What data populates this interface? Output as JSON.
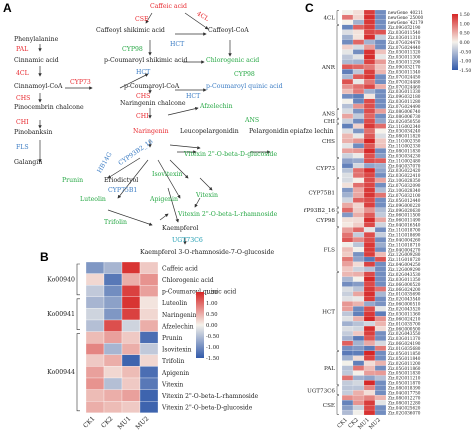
{
  "panels": {
    "a": "A",
    "b": "B",
    "c": "C"
  },
  "colors": {
    "red": "#e8282e",
    "blue": "#3b7cc4",
    "green": "#27a845",
    "teal": "#1a9bb0"
  },
  "pathway": {
    "compounds": [
      {
        "id": "caffeic",
        "text": "Caffeic acid",
        "color": "red"
      },
      {
        "id": "caffeoyl-shikimic",
        "text": "Caffeoyl shikimic acid",
        "color": "black"
      },
      {
        "id": "caffeoyl-coa",
        "text": "Caffeoyl-CoA",
        "color": "black"
      },
      {
        "id": "phenylalanine",
        "text": "Phenylalanine",
        "color": "black"
      },
      {
        "id": "pcoumaroyl-shikimic",
        "text": "p-Coumaroyl shikimic acid",
        "color": "black"
      },
      {
        "id": "chlorogenic",
        "text": "Chlorogenic acid",
        "color": "green"
      },
      {
        "id": "cinnamic",
        "text": "Cinnamic acid",
        "color": "black"
      },
      {
        "id": "cinnamoyl-coa",
        "text": "Cinnamoyl-CoA",
        "color": "black"
      },
      {
        "id": "pcoumaroyl-coa",
        "text": "p-Coumaroyl-CoA",
        "color": "black"
      },
      {
        "id": "pcoumaroyl-quinic",
        "text": "p-Coumaroyl quinic acid",
        "color": "blue"
      },
      {
        "id": "pinocembrin-chalcone",
        "text": "Pinocembrin chalcone",
        "color": "black"
      },
      {
        "id": "naringenin-chalcone",
        "text": "Naringenin chalcone",
        "color": "black"
      },
      {
        "id": "afzelechin",
        "text": "Afzelechin",
        "color": "green"
      },
      {
        "id": "pinobanksin",
        "text": "Pinobanksin",
        "color": "black"
      },
      {
        "id": "naringenin",
        "text": "Naringenin",
        "color": "red"
      },
      {
        "id": "leucopelargonidin",
        "text": "Leucopelargonidin",
        "color": "black"
      },
      {
        "id": "pelargonidin",
        "text": "Pelargonidin",
        "color": "black"
      },
      {
        "id": "epiafzelechin",
        "text": "epiafze lechin",
        "color": "black"
      },
      {
        "id": "galangin",
        "text": "Galangin",
        "color": "black"
      },
      {
        "id": "vitexin-glucoside",
        "text": "Vitexin 2\"-O-beta-D-glucoside",
        "color": "green"
      },
      {
        "id": "isovitexin",
        "text": "Isovitexin",
        "color": "green"
      },
      {
        "id": "prunin",
        "text": "Prunin",
        "color": "green"
      },
      {
        "id": "eriodictyol",
        "text": "Eriodictyol",
        "color": "black"
      },
      {
        "id": "vitexin",
        "text": "Vitexin",
        "color": "green"
      },
      {
        "id": "luteolin",
        "text": "Luteolin",
        "color": "green"
      },
      {
        "id": "apigenin",
        "text": "Apigenin",
        "color": "green"
      },
      {
        "id": "vitexin-rhamnoside",
        "text": "Vitexin 2\"-O-beta-L-rhamnoside",
        "color": "green"
      },
      {
        "id": "trifolin",
        "text": "Trifolin",
        "color": "green"
      },
      {
        "id": "kaempferol",
        "text": "Kaempferol",
        "color": "black"
      },
      {
        "id": "kaempferol-glucoside",
        "text": "Kaempferol 3-O-rhamnoside-7-O-glucoside",
        "color": "black"
      }
    ],
    "enzymes": [
      {
        "id": "cse",
        "text": "CSE",
        "color": "red"
      },
      {
        "id": "4cl-top",
        "text": "4CL",
        "color": "red"
      },
      {
        "id": "hct-top",
        "text": "HCT",
        "color": "blue"
      },
      {
        "id": "cyp98-top",
        "text": "CYP98",
        "color": "green"
      },
      {
        "id": "pal",
        "text": "PAL",
        "color": "red"
      },
      {
        "id": "4cl-left",
        "text": "4CL",
        "color": "red"
      },
      {
        "id": "cyp73",
        "text": "CYP73",
        "color": "red"
      },
      {
        "id": "hct-mid",
        "text": "HCT",
        "color": "blue"
      },
      {
        "id": "hct-low",
        "text": "HCT",
        "color": "blue"
      },
      {
        "id": "cyp98-low",
        "text": "CYP98",
        "color": "green"
      },
      {
        "id": "chs-left",
        "text": "CHS",
        "color": "red"
      },
      {
        "id": "chs-mid",
        "text": "CHS",
        "color": "red"
      },
      {
        "id": "chi-left",
        "text": "CHI",
        "color": "red"
      },
      {
        "id": "chi-mid",
        "text": "CHI",
        "color": "red"
      },
      {
        "id": "ans",
        "text": "ANS",
        "color": "green"
      },
      {
        "id": "fls",
        "text": "FLS",
        "color": "blue"
      },
      {
        "id": "cyp93b2",
        "text": "CYP93B2_16",
        "color": "blue"
      },
      {
        "id": "hb14g",
        "text": "HB14G",
        "color": "blue"
      },
      {
        "id": "cyp75b1",
        "text": "CYP75B1",
        "color": "blue"
      },
      {
        "id": "ugt73c6",
        "text": "UGT73C6",
        "color": "teal"
      }
    ]
  },
  "heatmap_b": {
    "columns": [
      "CK1",
      "CK2",
      "MU1",
      "MU2"
    ],
    "groups": [
      {
        "name": "Ko00940",
        "rows": [
          "Caffeic acid",
          "Chlorogenic acid",
          "p-Coumaroyl quinic acid"
        ]
      },
      {
        "name": "Ko00941",
        "rows": [
          "Luteolin",
          "Naringenin",
          "Afzelechin"
        ]
      },
      {
        "name": "Ko00944",
        "rows": [
          "Prunin",
          "Isovitexin",
          "Trifolin",
          "Apigenin",
          "Vitexin",
          "Vitexin 2\"-O-beta-L-rhamnoside",
          "Vitexin 2\"-O-beta-D-glucoside"
        ]
      }
    ],
    "values": [
      [
        -0.9,
        -0.6,
        1.4,
        0.3
      ],
      [
        0.2,
        -1.2,
        0.5,
        0.7
      ],
      [
        -0.4,
        -1.0,
        1.3,
        0.6
      ],
      [
        -0.6,
        -0.8,
        1.4,
        0.1
      ],
      [
        -0.3,
        -0.9,
        1.3,
        0.2
      ],
      [
        -0.5,
        1.2,
        -0.3,
        0.5
      ],
      [
        0.4,
        0.6,
        0.3,
        -1.3
      ],
      [
        0.8,
        -0.6,
        0.5,
        -0.4
      ],
      [
        0.3,
        0.5,
        -1.4,
        0.2
      ],
      [
        0.6,
        0.2,
        0.4,
        -1.3
      ],
      [
        0.7,
        -0.5,
        0.3,
        -1.2
      ],
      [
        0.4,
        0.5,
        0.6,
        -1.4
      ],
      [
        0.5,
        0.4,
        0.3,
        -1.4
      ]
    ],
    "legend_ticks": [
      "1.50",
      "1.00",
      "0.50",
      "0.00",
      "-0.50",
      "-1.00",
      "-1.50"
    ]
  },
  "heatmap_c": {
    "columns": [
      "CK1",
      "CK2",
      "MU1",
      "MU2"
    ],
    "groups": [
      {
        "name": "4CL",
        "count": 3
      },
      {
        "name": "ANR",
        "count": 17
      },
      {
        "name": "ANS",
        "count": 2
      },
      {
        "name": "CHI",
        "count": 1
      },
      {
        "name": "CHS",
        "count": 7
      },
      {
        "name": "CYP73",
        "count": 4
      },
      {
        "name": "CYP75B1",
        "count": 6
      },
      {
        "name": "CYP93B2_16",
        "count": 1
      },
      {
        "name": "CYP98",
        "count": 3
      },
      {
        "name": "FLS",
        "count": 9
      },
      {
        "name": "HCT",
        "count": 16
      },
      {
        "name": "PAL",
        "count": 7
      },
      {
        "name": "UGT73C6",
        "count": 2
      },
      {
        "name": "CSE",
        "count": 4
      }
    ],
    "gene_labels": [
      "newGene_40211",
      "newGene_25000",
      "newGene_42179",
      "Ziz.09G032190",
      "Ziz.03G011540",
      "Ziz.03G011310",
      "Ziz.07G024470",
      "Ziz.07G024440",
      "Ziz.03G011320",
      "Ziz.03G011300",
      "Ziz.03G011290",
      "Ziz.09G032170",
      "Ziz.03G011340",
      "Ziz.07G024450",
      "Ziz.07G024480",
      "Ziz.07G024460",
      "Ziz.03G011330",
      "Ziz.09G032180",
      "Ziz.03G011280",
      "Ziz.07G024490",
      "Ziz.08G006740",
      "Ziz.08G006730",
      "Ziz.02G050550",
      "Ziz.11G002340",
      "Ziz.03G034240",
      "Ziz.08G011820",
      "Ziz.11G002350",
      "Ziz.11G002330",
      "Ziz.08G011830",
      "Ziz.03G034230",
      "Ziz.11G002480",
      "Ziz.04G037070",
      "Ziz.03G022420",
      "Ziz.03G022410",
      "Ziz.10G028350",
      "Ziz.07G032090",
      "Ziz.10G028340",
      "Ziz.07G032100",
      "Ziz.05G012440",
      "Ziz.09G000220",
      "Ziz.09G020630",
      "Ziz.06G011500",
      "Ziz.06G011490",
      "Ziz.04G016540",
      "Ziz.11G018700",
      "Ziz.11G018690",
      "Ziz.04G004260",
      "Ziz.11G018710",
      "Ziz.04G004270",
      "Ziz.12G009280",
      "Ziz.11G018720",
      "Ziz.04G004250",
      "Ziz.12G009290",
      "Ziz.02G043530",
      "Ziz.03G011350",
      "Ziz.06G000520",
      "Ziz.06G024200",
      "Ziz.01G035690",
      "Ziz.02G043540",
      "Ziz.06G000510",
      "Ziz.02G043520",
      "Ziz.03G011360",
      "Ziz.06G024210",
      "Ziz.01G035700",
      "Ziz.06G000500",
      "Ziz.02G043550",
      "Ziz.03G011370",
      "Ziz.06G024190",
      "Ziz.01G035680",
      "Ziz.05G011850",
      "Ziz.05G011840",
      "Ziz.02G011200",
      "Ziz.05G011860",
      "Ziz.05G011830",
      "Ziz.02G011210",
      "Ziz.05G011870",
      "Ziz.08G018390",
      "Ziz.04G017750",
      "Ziz.08G012270",
      "Ziz.08G012280",
      "Ziz.04G025620",
      "Ziz.02G036070"
    ],
    "legend_ticks": [
      "1.50",
      "1.00",
      "0.50",
      "0.00",
      "-0.50",
      "-1.00",
      "-1.50"
    ]
  }
}
